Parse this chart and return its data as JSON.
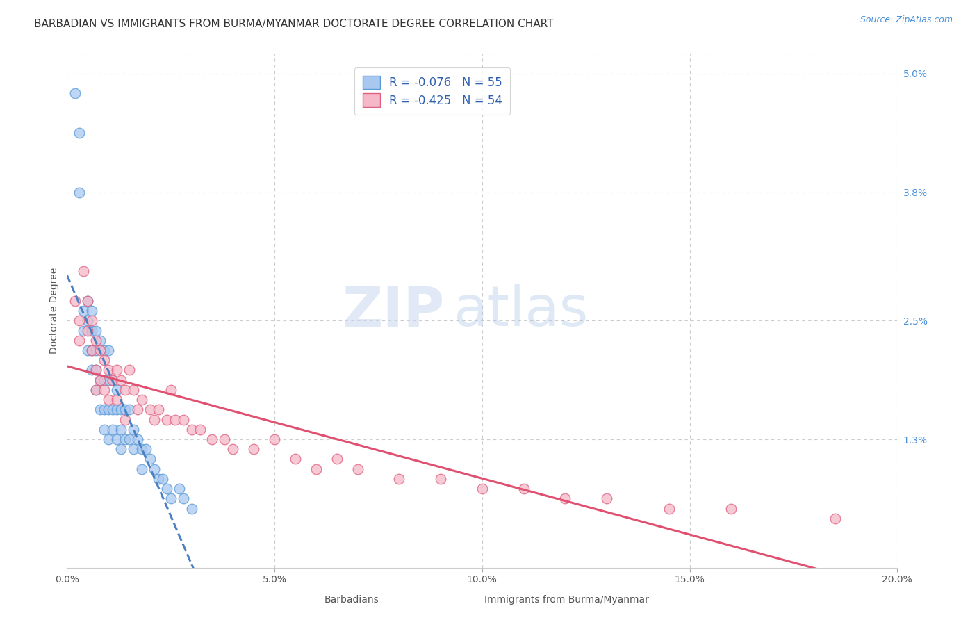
{
  "title": "BARBADIAN VS IMMIGRANTS FROM BURMA/MYANMAR DOCTORATE DEGREE CORRELATION CHART",
  "source": "Source: ZipAtlas.com",
  "ylabel": "Doctorate Degree",
  "legend_label_blue": "Barbadians",
  "legend_label_pink": "Immigrants from Burma/Myanmar",
  "xlim": [
    0.0,
    0.2
  ],
  "ylim": [
    0.0,
    0.052
  ],
  "xticks": [
    0.0,
    0.05,
    0.1,
    0.15,
    0.2
  ],
  "xticklabels": [
    "0.0%",
    "5.0%",
    "10.0%",
    "15.0%",
    "20.0%"
  ],
  "yticks_right": [
    0.013,
    0.025,
    0.038,
    0.05
  ],
  "yticklabels_right": [
    "1.3%",
    "2.5%",
    "3.8%",
    "5.0%"
  ],
  "grid_color": "#cccccc",
  "background_color": "#ffffff",
  "legend_R1": "R = -0.076",
  "legend_N1": "N = 55",
  "legend_R2": "R = -0.425",
  "legend_N2": "N = 54",
  "blue_fill": "#a8c8f0",
  "blue_edge": "#5a9ad8",
  "pink_fill": "#f5b8c8",
  "pink_edge": "#e06080",
  "blue_line_color": "#4a7fc1",
  "pink_line_color": "#e05070",
  "watermark_zip": "ZIP",
  "watermark_atlas": "atlas",
  "title_fontsize": 11,
  "label_fontsize": 10,
  "tick_fontsize": 10,
  "blue_scatter_x": [
    0.002,
    0.003,
    0.003,
    0.004,
    0.004,
    0.005,
    0.005,
    0.005,
    0.006,
    0.006,
    0.006,
    0.006,
    0.007,
    0.007,
    0.007,
    0.007,
    0.008,
    0.008,
    0.008,
    0.009,
    0.009,
    0.009,
    0.009,
    0.01,
    0.01,
    0.01,
    0.01,
    0.011,
    0.011,
    0.011,
    0.012,
    0.012,
    0.012,
    0.013,
    0.013,
    0.013,
    0.014,
    0.014,
    0.015,
    0.015,
    0.016,
    0.016,
    0.017,
    0.018,
    0.018,
    0.019,
    0.02,
    0.021,
    0.022,
    0.023,
    0.024,
    0.025,
    0.027,
    0.028,
    0.03
  ],
  "blue_scatter_y": [
    0.048,
    0.044,
    0.038,
    0.026,
    0.024,
    0.027,
    0.025,
    0.022,
    0.026,
    0.024,
    0.022,
    0.02,
    0.024,
    0.022,
    0.02,
    0.018,
    0.023,
    0.019,
    0.016,
    0.022,
    0.019,
    0.016,
    0.014,
    0.022,
    0.019,
    0.016,
    0.013,
    0.019,
    0.016,
    0.014,
    0.018,
    0.016,
    0.013,
    0.016,
    0.014,
    0.012,
    0.016,
    0.013,
    0.016,
    0.013,
    0.014,
    0.012,
    0.013,
    0.012,
    0.01,
    0.012,
    0.011,
    0.01,
    0.009,
    0.009,
    0.008,
    0.007,
    0.008,
    0.007,
    0.006
  ],
  "pink_scatter_x": [
    0.002,
    0.003,
    0.003,
    0.004,
    0.005,
    0.005,
    0.006,
    0.006,
    0.007,
    0.007,
    0.007,
    0.008,
    0.008,
    0.009,
    0.009,
    0.01,
    0.01,
    0.011,
    0.012,
    0.012,
    0.013,
    0.014,
    0.014,
    0.015,
    0.016,
    0.017,
    0.018,
    0.02,
    0.021,
    0.022,
    0.024,
    0.025,
    0.026,
    0.028,
    0.03,
    0.032,
    0.035,
    0.038,
    0.04,
    0.045,
    0.05,
    0.055,
    0.06,
    0.065,
    0.07,
    0.08,
    0.09,
    0.1,
    0.11,
    0.12,
    0.13,
    0.145,
    0.16,
    0.185
  ],
  "pink_scatter_y": [
    0.027,
    0.025,
    0.023,
    0.03,
    0.027,
    0.024,
    0.025,
    0.022,
    0.023,
    0.02,
    0.018,
    0.022,
    0.019,
    0.021,
    0.018,
    0.02,
    0.017,
    0.019,
    0.02,
    0.017,
    0.019,
    0.018,
    0.015,
    0.02,
    0.018,
    0.016,
    0.017,
    0.016,
    0.015,
    0.016,
    0.015,
    0.018,
    0.015,
    0.015,
    0.014,
    0.014,
    0.013,
    0.013,
    0.012,
    0.012,
    0.013,
    0.011,
    0.01,
    0.011,
    0.01,
    0.009,
    0.009,
    0.008,
    0.008,
    0.007,
    0.007,
    0.006,
    0.006,
    0.005
  ]
}
